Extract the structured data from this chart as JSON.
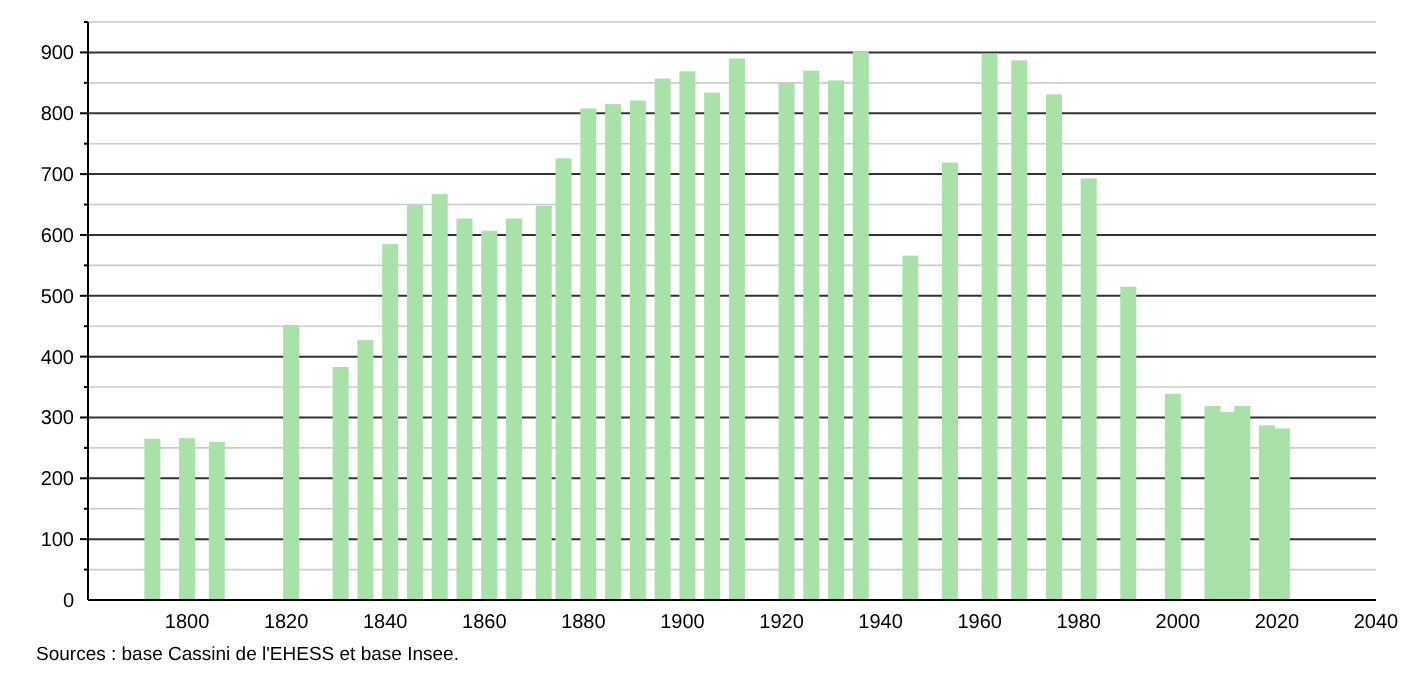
{
  "chart_data": {
    "type": "bar",
    "x": [
      1793,
      1800,
      1806,
      1821,
      1831,
      1836,
      1841,
      1846,
      1851,
      1856,
      1861,
      1866,
      1872,
      1876,
      1881,
      1886,
      1891,
      1896,
      1901,
      1906,
      1911,
      1921,
      1926,
      1931,
      1936,
      1946,
      1954,
      1962,
      1968,
      1975,
      1982,
      1990,
      1999,
      2007,
      2010,
      2013,
      2018,
      2021
    ],
    "values": [
      265,
      266,
      260,
      452,
      383,
      427,
      585,
      649,
      667,
      627,
      607,
      627,
      648,
      726,
      808,
      815,
      821,
      857,
      869,
      834,
      890,
      850,
      870,
      854,
      902,
      566,
      719,
      898,
      887,
      831,
      693,
      515,
      339,
      319,
      309,
      319,
      287,
      282
    ],
    "color": "#a8e2a8",
    "xlim": [
      1780,
      2040
    ],
    "xticks": [
      1800,
      1820,
      1840,
      1860,
      1880,
      1900,
      1920,
      1940,
      1960,
      1980,
      2000,
      2020,
      2040
    ],
    "ylim": [
      0,
      950
    ],
    "yticks": [
      0,
      {
        "value": 50,
        "label": null
      },
      100,
      {
        "value": 150,
        "label": null
      },
      200,
      {
        "value": 250,
        "label": null
      },
      300,
      {
        "value": 350,
        "label": null
      },
      400,
      {
        "value": 450,
        "label": null
      },
      500,
      {
        "value": 550,
        "label": null
      },
      600,
      {
        "value": 650,
        "label": null
      },
      700,
      {
        "value": 750,
        "label": null
      },
      800,
      {
        "value": 850,
        "label": null
      },
      900,
      {
        "value": 950,
        "label": null
      }
    ],
    "grid": true,
    "annotations": [
      "Sources : base Cassini de l'EHESS et base Insee."
    ]
  }
}
